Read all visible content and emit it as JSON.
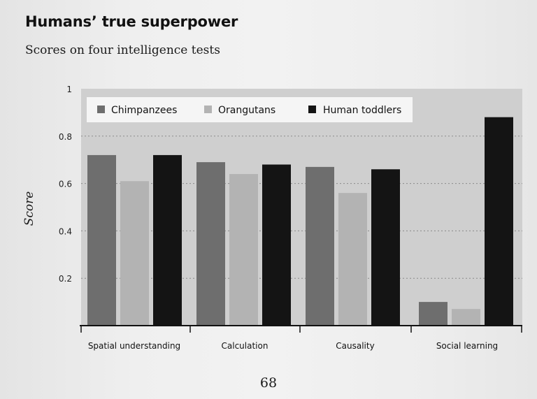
{
  "header": {
    "title": "Humans’ true superpower",
    "subtitle": "Scores on four intelligence tests"
  },
  "page_number": "68",
  "colors": {
    "Chimpanzees": "#6e6e6e",
    "Orangutans": "#b3b3b3",
    "Human toddlers": "#141414",
    "plot_background": "#cfcfcf",
    "legend_background": "#f5f5f5"
  },
  "chart_data": {
    "type": "bar",
    "title": "Humans’ true superpower",
    "subtitle": "Scores on four intelligence tests",
    "xlabel": "",
    "ylabel": "Score",
    "ylim": [
      0,
      1
    ],
    "yticks": [
      0.2,
      0.4,
      0.6,
      0.8,
      1
    ],
    "ytick_labels": [
      "0.2",
      "0.4",
      "0.6",
      "0.8",
      "1"
    ],
    "grid": "horizontal dotted",
    "legend_position": "top",
    "categories": [
      "Spatial understanding",
      "Calculation",
      "Causality",
      "Social learning"
    ],
    "series": [
      {
        "name": "Chimpanzees",
        "values": [
          0.72,
          0.69,
          0.67,
          0.1
        ]
      },
      {
        "name": "Orangutans",
        "values": [
          0.61,
          0.64,
          0.56,
          0.07
        ]
      },
      {
        "name": "Human toddlers",
        "values": [
          0.72,
          0.68,
          0.66,
          0.88
        ]
      }
    ]
  }
}
